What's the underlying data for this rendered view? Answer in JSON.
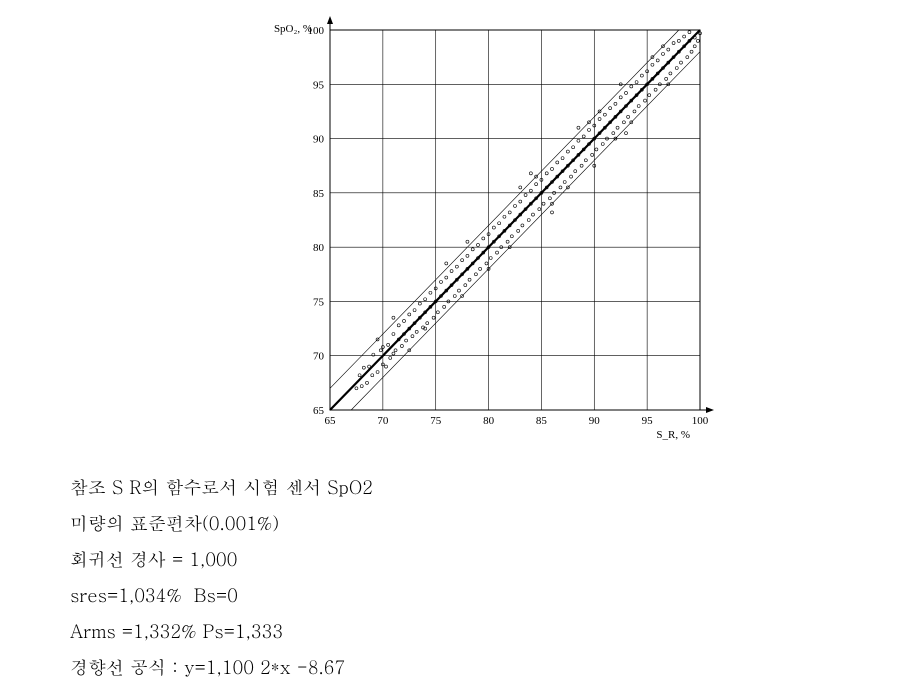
{
  "chart": {
    "type": "scatter",
    "xlabel": "S_R, %",
    "ylabel": "SpO₂, %",
    "xlim": [
      65,
      100
    ],
    "ylim": [
      65,
      100
    ],
    "xticks": [
      65,
      70,
      75,
      80,
      85,
      90,
      95,
      100
    ],
    "yticks": [
      65,
      70,
      75,
      80,
      85,
      90,
      95,
      100
    ],
    "grid_color": "#000000",
    "grid_width": 0.6,
    "background_color": "#ffffff",
    "regression_line": {
      "slope": 1.0,
      "intercept": 0.0,
      "color": "#000000",
      "width": 2.2
    },
    "band_lines": [
      {
        "slope": 1.0,
        "intercept": 2.0,
        "color": "#000000",
        "width": 0.6
      },
      {
        "slope": 1.0,
        "intercept": -2.0,
        "color": "#000000",
        "width": 0.6
      }
    ],
    "marker": {
      "shape": "circle",
      "radius": 1.5,
      "stroke": "#000000",
      "fill": "none",
      "stroke_width": 0.6
    },
    "label_fontsize": 11,
    "tick_fontsize": 11,
    "points": [
      [
        67.5,
        67.0
      ],
      [
        67.8,
        68.2
      ],
      [
        68.0,
        67.2
      ],
      [
        68.2,
        68.9
      ],
      [
        68.5,
        67.5
      ],
      [
        68.7,
        69.0
      ],
      [
        69.0,
        68.2
      ],
      [
        69.1,
        70.1
      ],
      [
        69.5,
        68.5
      ],
      [
        69.8,
        70.5
      ],
      [
        70.0,
        69.2
      ],
      [
        70.0,
        70.8
      ],
      [
        70.3,
        69.0
      ],
      [
        70.5,
        71.0
      ],
      [
        70.7,
        69.8
      ],
      [
        71.0,
        70.2
      ],
      [
        71.0,
        72.0
      ],
      [
        71.2,
        70.5
      ],
      [
        71.5,
        71.5
      ],
      [
        71.5,
        72.8
      ],
      [
        71.8,
        70.9
      ],
      [
        72.0,
        72.0
      ],
      [
        72.0,
        73.2
      ],
      [
        72.2,
        71.4
      ],
      [
        72.5,
        72.5
      ],
      [
        72.5,
        73.8
      ],
      [
        72.8,
        71.8
      ],
      [
        73.0,
        73.0
      ],
      [
        73.0,
        74.2
      ],
      [
        73.2,
        72.2
      ],
      [
        73.5,
        73.5
      ],
      [
        73.5,
        74.8
      ],
      [
        73.8,
        72.6
      ],
      [
        74.0,
        74.0
      ],
      [
        74.0,
        75.2
      ],
      [
        74.2,
        73.0
      ],
      [
        74.5,
        74.5
      ],
      [
        74.5,
        75.8
      ],
      [
        74.8,
        73.5
      ],
      [
        75.0,
        75.0
      ],
      [
        75.0,
        76.2
      ],
      [
        75.2,
        74.0
      ],
      [
        75.5,
        75.5
      ],
      [
        75.5,
        76.8
      ],
      [
        75.8,
        74.5
      ],
      [
        76.0,
        76.0
      ],
      [
        76.0,
        77.2
      ],
      [
        76.2,
        75.0
      ],
      [
        76.5,
        76.5
      ],
      [
        76.5,
        77.8
      ],
      [
        76.8,
        75.5
      ],
      [
        77.0,
        77.0
      ],
      [
        77.0,
        78.2
      ],
      [
        77.2,
        76.0
      ],
      [
        77.5,
        77.5
      ],
      [
        77.5,
        78.8
      ],
      [
        77.8,
        76.5
      ],
      [
        78.0,
        78.0
      ],
      [
        78.0,
        79.2
      ],
      [
        78.2,
        77.0
      ],
      [
        78.5,
        78.5
      ],
      [
        78.5,
        79.8
      ],
      [
        78.8,
        77.5
      ],
      [
        79.0,
        79.0
      ],
      [
        79.0,
        80.2
      ],
      [
        79.2,
        78.0
      ],
      [
        79.5,
        79.5
      ],
      [
        79.5,
        80.8
      ],
      [
        79.8,
        78.5
      ],
      [
        80.0,
        80.0
      ],
      [
        80.0,
        81.2
      ],
      [
        80.2,
        79.0
      ],
      [
        80.5,
        80.5
      ],
      [
        80.5,
        81.8
      ],
      [
        80.8,
        79.5
      ],
      [
        81.0,
        81.0
      ],
      [
        81.0,
        82.2
      ],
      [
        81.2,
        80.0
      ],
      [
        81.5,
        81.5
      ],
      [
        81.5,
        82.8
      ],
      [
        81.8,
        80.5
      ],
      [
        82.0,
        82.0
      ],
      [
        82.0,
        83.2
      ],
      [
        82.2,
        81.0
      ],
      [
        82.5,
        82.5
      ],
      [
        82.5,
        83.8
      ],
      [
        82.8,
        81.5
      ],
      [
        83.0,
        83.0
      ],
      [
        83.0,
        84.2
      ],
      [
        83.2,
        82.0
      ],
      [
        83.5,
        83.5
      ],
      [
        83.5,
        84.8
      ],
      [
        83.8,
        82.5
      ],
      [
        84.0,
        84.0
      ],
      [
        84.0,
        85.2
      ],
      [
        84.2,
        83.0
      ],
      [
        84.5,
        84.5
      ],
      [
        84.5,
        85.8
      ],
      [
        84.8,
        83.5
      ],
      [
        85.0,
        85.0
      ],
      [
        85.0,
        86.2
      ],
      [
        85.2,
        84.0
      ],
      [
        85.5,
        85.5
      ],
      [
        85.5,
        86.8
      ],
      [
        85.8,
        84.5
      ],
      [
        86.0,
        86.0
      ],
      [
        86.0,
        87.2
      ],
      [
        86.2,
        85.0
      ],
      [
        86.5,
        86.5
      ],
      [
        86.5,
        87.8
      ],
      [
        86.8,
        85.5
      ],
      [
        87.0,
        87.0
      ],
      [
        87.0,
        88.2
      ],
      [
        87.2,
        86.0
      ],
      [
        87.5,
        87.5
      ],
      [
        87.5,
        88.8
      ],
      [
        87.8,
        86.5
      ],
      [
        88.0,
        88.0
      ],
      [
        88.0,
        89.2
      ],
      [
        88.2,
        87.0
      ],
      [
        88.5,
        88.5
      ],
      [
        88.5,
        89.8
      ],
      [
        88.8,
        87.5
      ],
      [
        89.0,
        89.0
      ],
      [
        89.0,
        90.2
      ],
      [
        89.2,
        88.0
      ],
      [
        89.5,
        89.5
      ],
      [
        89.5,
        90.8
      ],
      [
        89.8,
        88.5
      ],
      [
        90.0,
        90.0
      ],
      [
        90.0,
        91.2
      ],
      [
        90.2,
        89.0
      ],
      [
        90.5,
        90.5
      ],
      [
        90.5,
        91.8
      ],
      [
        90.8,
        89.5
      ],
      [
        91.0,
        91.0
      ],
      [
        91.0,
        92.2
      ],
      [
        91.2,
        90.0
      ],
      [
        91.5,
        91.5
      ],
      [
        91.5,
        92.8
      ],
      [
        91.8,
        90.5
      ],
      [
        92.0,
        92.0
      ],
      [
        92.0,
        93.2
      ],
      [
        92.2,
        91.0
      ],
      [
        92.5,
        92.5
      ],
      [
        92.5,
        93.8
      ],
      [
        92.8,
        91.5
      ],
      [
        93.0,
        93.0
      ],
      [
        93.0,
        94.2
      ],
      [
        93.2,
        92.0
      ],
      [
        93.5,
        93.5
      ],
      [
        93.5,
        94.8
      ],
      [
        93.8,
        92.5
      ],
      [
        94.0,
        94.0
      ],
      [
        94.0,
        95.2
      ],
      [
        94.2,
        93.0
      ],
      [
        94.5,
        94.5
      ],
      [
        94.5,
        95.8
      ],
      [
        94.8,
        93.5
      ],
      [
        95.0,
        95.0
      ],
      [
        95.0,
        96.2
      ],
      [
        95.2,
        94.0
      ],
      [
        95.5,
        95.5
      ],
      [
        95.5,
        96.8
      ],
      [
        95.8,
        94.5
      ],
      [
        96.0,
        96.0
      ],
      [
        96.0,
        97.2
      ],
      [
        96.2,
        95.0
      ],
      [
        96.5,
        96.5
      ],
      [
        96.5,
        97.8
      ],
      [
        96.8,
        95.5
      ],
      [
        97.0,
        97.0
      ],
      [
        97.0,
        98.2
      ],
      [
        97.2,
        96.0
      ],
      [
        97.5,
        97.5
      ],
      [
        97.5,
        98.8
      ],
      [
        97.8,
        96.5
      ],
      [
        98.0,
        98.0
      ],
      [
        98.0,
        99.0
      ],
      [
        98.2,
        97.0
      ],
      [
        98.5,
        98.5
      ],
      [
        98.5,
        99.4
      ],
      [
        98.8,
        97.5
      ],
      [
        99.0,
        99.0
      ],
      [
        99.0,
        99.8
      ],
      [
        99.2,
        98.0
      ],
      [
        99.5,
        99.3
      ],
      [
        99.5,
        98.5
      ],
      [
        99.8,
        99.0
      ],
      [
        100.0,
        99.7
      ],
      [
        71.0,
        73.5
      ],
      [
        74.0,
        72.5
      ],
      [
        78.0,
        80.5
      ],
      [
        80.0,
        78.0
      ],
      [
        83.0,
        85.5
      ],
      [
        86.0,
        84.0
      ],
      [
        89.5,
        91.5
      ],
      [
        92.0,
        90.0
      ],
      [
        95.5,
        97.5
      ],
      [
        97.0,
        95.0
      ],
      [
        69.5,
        71.5
      ],
      [
        72.5,
        70.5
      ],
      [
        76.0,
        78.5
      ],
      [
        77.5,
        75.5
      ],
      [
        82.0,
        80.0
      ],
      [
        84.5,
        86.5
      ],
      [
        87.5,
        85.5
      ],
      [
        90.5,
        92.5
      ],
      [
        93.5,
        91.5
      ],
      [
        96.5,
        98.5
      ],
      [
        84.0,
        86.8
      ],
      [
        86.0,
        83.2
      ],
      [
        88.5,
        91.0
      ],
      [
        90.0,
        87.5
      ],
      [
        92.5,
        95.0
      ],
      [
        93.0,
        90.5
      ]
    ]
  },
  "captions": {
    "line1": "참조 S R의 함수로서 시험 센서 SpO2",
    "line2": "미량의 표준편차(0.001%)",
    "line3": "회귀선 경사 = 1,000",
    "line4": "sres=1,034%  Bs=0",
    "line5": "Arms =1,332% Ps=1,333",
    "line6": "경향선 공식 : y=1,100 2*x -8.67"
  }
}
